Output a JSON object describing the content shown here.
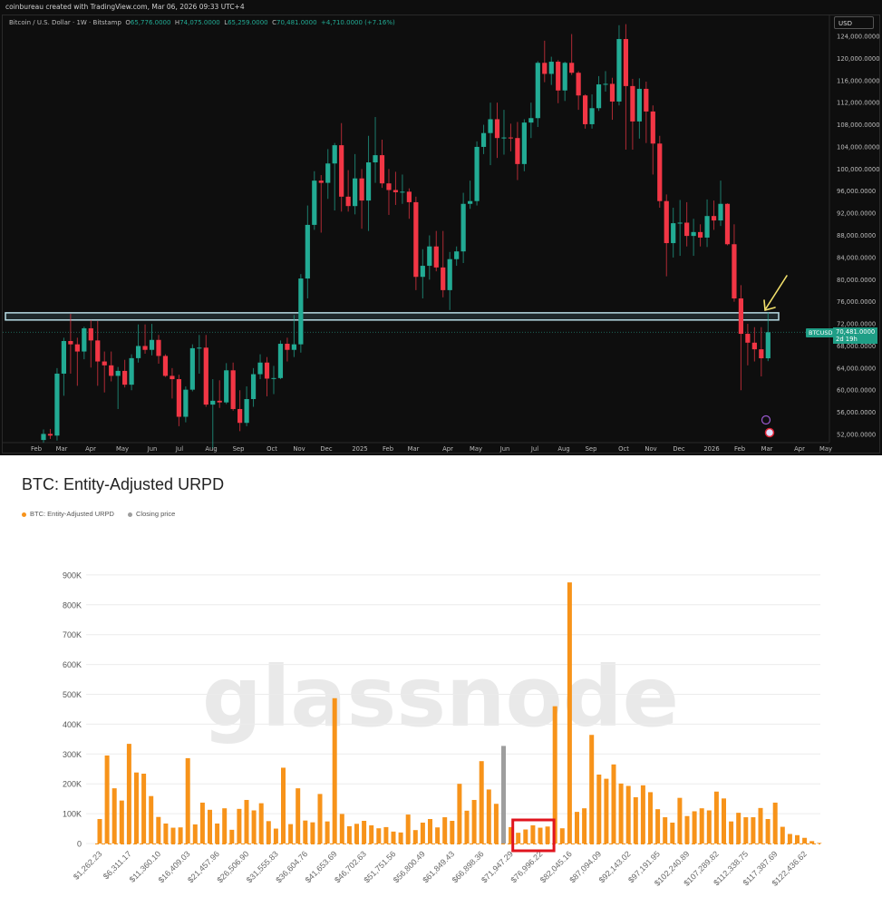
{
  "header": {
    "credit": "coinbureau created with TradingView.com, Mar 06, 2026 09:33 UTC+4",
    "symbol_desc": "Bitcoin / U.S. Dollar · 1W · Bitstamp",
    "o_label": "O",
    "o_value": "65,776.0000",
    "h_label": "H",
    "h_value": "74,075.0000",
    "l_label": "L",
    "l_value": "65,259.0000",
    "c_label": "C",
    "c_value": "70,481.0000",
    "change": "+4,710.0000 (+7.16%)",
    "currency": "USD"
  },
  "price_tag": {
    "symbol": "BTCUSD",
    "price": "70,481.0000",
    "countdown": "2d 19h"
  },
  "colors": {
    "up": "#22ab94",
    "down": "#f23645",
    "zone": "#b9dde6",
    "arrow": "#f2e06b",
    "urpd": "#f7931a",
    "closing": "#9e9e9e",
    "highlight_box": "#e0141e"
  },
  "chart_data": [
    {
      "type": "candlestick",
      "title": "Bitcoin / U.S. Dollar · 1W · Bitstamp",
      "interval": "1W",
      "ylim": [
        50000,
        126000
      ],
      "y_ticks": [
        52000,
        56000,
        60000,
        64000,
        68000,
        72000,
        76000,
        80000,
        84000,
        88000,
        92000,
        96000,
        100000,
        104000,
        108000,
        112000,
        116000,
        120000,
        124000
      ],
      "y_tick_labels": [
        "52,000.0000",
        "56,000.0000",
        "60,000.0000",
        "64,000.0000",
        "68,000.0000",
        "72,000.0000",
        "76,000.0000",
        "80,000.0000",
        "84,000.0000",
        "88,000.0000",
        "92,000.0000",
        "96,000.0000",
        "100,000.0000",
        "104,000.0000",
        "108,000.0000",
        "112,000.0000",
        "116,000.0000",
        "120,000.0000",
        "124,000.0000"
      ],
      "x_tick_labels": [
        "Feb",
        "Mar",
        "Apr",
        "May",
        "Jun",
        "Jul",
        "Aug",
        "Sep",
        "Oct",
        "Nov",
        "Dec",
        "2025",
        "Feb",
        "Mar",
        "Apr",
        "May",
        "Jun",
        "Jul",
        "Aug",
        "Sep",
        "Oct",
        "Nov",
        "Dec",
        "2026",
        "Feb",
        "Mar",
        "Apr",
        "May"
      ],
      "ohlc_fields": [
        "open",
        "high",
        "low",
        "close"
      ],
      "candles": [
        [
          51000,
          52900,
          50500,
          52100
        ],
        [
          52100,
          53000,
          51200,
          51800
        ],
        [
          51800,
          64000,
          50900,
          63000
        ],
        [
          63000,
          69500,
          59000,
          68900
        ],
        [
          68900,
          73800,
          63000,
          68300
        ],
        [
          68300,
          69500,
          60800,
          67000
        ],
        [
          67000,
          71500,
          65600,
          71200
        ],
        [
          71200,
          72700,
          64100,
          69000
        ],
        [
          69000,
          72500,
          60800,
          65200
        ],
        [
          65200,
          67000,
          59600,
          64500
        ],
        [
          64500,
          67000,
          61600,
          62600
        ],
        [
          62600,
          64200,
          56600,
          63500
        ],
        [
          63500,
          65500,
          60500,
          61000
        ],
        [
          61000,
          66500,
          60000,
          65800
        ],
        [
          65800,
          71900,
          65000,
          68000
        ],
        [
          68000,
          71900,
          66600,
          67300
        ],
        [
          67300,
          72000,
          66300,
          69100
        ],
        [
          69100,
          70000,
          64800,
          66200
        ],
        [
          66200,
          66500,
          62400,
          62600
        ],
        [
          62600,
          64000,
          58500,
          62000
        ],
        [
          62000,
          62800,
          53500,
          55200
        ],
        [
          55200,
          60700,
          54200,
          60100
        ],
        [
          60100,
          68300,
          59800,
          67600
        ],
        [
          67600,
          70000,
          63000,
          67700
        ],
        [
          67700,
          70000,
          57000,
          57400
        ],
        [
          57400,
          62000,
          49500,
          58100
        ],
        [
          58100,
          61800,
          56800,
          57800
        ],
        [
          57800,
          64900,
          57500,
          63600
        ],
        [
          63600,
          65000,
          56300,
          56600
        ],
        [
          56600,
          60000,
          52600,
          54100
        ],
        [
          54100,
          60700,
          53500,
          58400
        ],
        [
          58400,
          64000,
          57000,
          62900
        ],
        [
          62900,
          66500,
          62000,
          65000
        ],
        [
          65000,
          66000,
          58900,
          62100
        ],
        [
          62100,
          64400,
          59300,
          62200
        ],
        [
          62200,
          69000,
          62000,
          68400
        ],
        [
          68400,
          69500,
          65200,
          67300
        ],
        [
          67300,
          73600,
          66000,
          68300
        ],
        [
          68300,
          81000,
          66800,
          80200
        ],
        [
          80200,
          93400,
          76600,
          89900
        ],
        [
          89900,
          99600,
          89000,
          97900
        ],
        [
          97900,
          98900,
          88500,
          97500
        ],
        [
          97500,
          103600,
          94600,
          101000
        ],
        [
          101000,
          104700,
          92500,
          104300
        ],
        [
          104300,
          108300,
          92300,
          95000
        ],
        [
          95000,
          99800,
          92300,
          93300
        ],
        [
          93300,
          102700,
          91800,
          98300
        ],
        [
          98300,
          100000,
          89200,
          94300
        ],
        [
          94300,
          106000,
          88800,
          101200
        ],
        [
          101200,
          109400,
          97500,
          102500
        ],
        [
          102500,
          105300,
          96600,
          97400
        ],
        [
          97400,
          100000,
          91700,
          96200
        ],
        [
          96200,
          99500,
          93500,
          95800
        ],
        [
          95800,
          99000,
          93700,
          95900
        ],
        [
          95900,
          96500,
          91000,
          94000
        ],
        [
          94000,
          95000,
          78100,
          80500
        ],
        [
          80500,
          85500,
          76600,
          82500
        ],
        [
          82500,
          88000,
          80000,
          86000
        ],
        [
          86000,
          88800,
          81500,
          82200
        ],
        [
          82200,
          88800,
          76800,
          78100
        ],
        [
          78100,
          85000,
          74500,
          83700
        ],
        [
          83700,
          86000,
          82500,
          85100
        ],
        [
          85100,
          95700,
          83000,
          93700
        ],
        [
          93700,
          97900,
          92800,
          94200
        ],
        [
          94200,
          105000,
          93400,
          104000
        ],
        [
          104000,
          108000,
          102700,
          106500
        ],
        [
          106500,
          112000,
          100700,
          109000
        ],
        [
          109000,
          112000,
          102000,
          105600
        ],
        [
          105600,
          110700,
          102600,
          105700
        ],
        [
          105700,
          108200,
          103200,
          105600
        ],
        [
          105600,
          108500,
          98000,
          100900
        ],
        [
          100900,
          109000,
          99600,
          108400
        ],
        [
          108400,
          112000,
          105600,
          109200
        ],
        [
          109200,
          119500,
          107600,
          119200
        ],
        [
          119200,
          123200,
          115700,
          117200
        ],
        [
          117200,
          120300,
          115200,
          119400
        ],
        [
          119400,
          119700,
          111900,
          114200
        ],
        [
          114200,
          119400,
          112300,
          119200
        ],
        [
          119200,
          124400,
          117000,
          117400
        ],
        [
          117400,
          117700,
          110700,
          113300
        ],
        [
          113300,
          113500,
          107300,
          108100
        ],
        [
          108100,
          113500,
          107300,
          111000
        ],
        [
          111000,
          116800,
          110500,
          115300
        ],
        [
          115300,
          117700,
          114000,
          115400
        ],
        [
          115400,
          116500,
          108900,
          112200
        ],
        [
          112200,
          126000,
          111500,
          123500
        ],
        [
          123500,
          126200,
          103500,
          115000
        ],
        [
          115000,
          116300,
          103500,
          108600
        ],
        [
          108600,
          116400,
          105500,
          114500
        ],
        [
          114500,
          115800,
          104700,
          110400
        ],
        [
          110400,
          111500,
          99000,
          104600
        ],
        [
          104600,
          106000,
          93000,
          94200
        ],
        [
          94200,
          95400,
          80600,
          86600
        ],
        [
          86600,
          93000,
          84000,
          90200
        ],
        [
          90200,
          94400,
          84300,
          90300
        ],
        [
          90300,
          94000,
          86000,
          87900
        ],
        [
          87900,
          91000,
          84300,
          88600
        ],
        [
          88600,
          90000,
          86000,
          87600
        ],
        [
          87600,
          94500,
          85900,
          91500
        ],
        [
          91500,
          94300,
          89000,
          90700
        ],
        [
          90700,
          97900,
          89700,
          93700
        ],
        [
          93700,
          93800,
          86200,
          86400
        ],
        [
          86400,
          90000,
          76000,
          76600
        ],
        [
          76600,
          79000,
          60000,
          70200
        ],
        [
          70200,
          72000,
          64500,
          68600
        ],
        [
          68600,
          71400,
          65200,
          67400
        ],
        [
          67400,
          71400,
          62500,
          65776
        ],
        [
          65776,
          74075,
          65259,
          70481
        ]
      ],
      "last_price": 70481,
      "annotations": {
        "resistance_zone": [
          72700,
          74000
        ],
        "arrow": "pointing to last candle high at zone"
      }
    },
    {
      "type": "bar",
      "title": "BTC: Entity-Adjusted URPD",
      "legend": [
        {
          "name": "BTC: Entity-Adjusted URPD",
          "color": "#f7931a"
        },
        {
          "name": "Closing price",
          "color": "#9e9e9e"
        }
      ],
      "legend_placement": "top-left",
      "watermark": "glassnode",
      "ylim": [
        0,
        900000
      ],
      "y_ticks": [
        0,
        100000,
        200000,
        300000,
        400000,
        500000,
        600000,
        700000,
        800000,
        900000
      ],
      "y_tick_labels": [
        "0",
        "100K",
        "200K",
        "300K",
        "400K",
        "500K",
        "600K",
        "700K",
        "800K",
        "900K"
      ],
      "x_tick_labels": [
        "$1,262.23",
        "$6,311.17",
        "$11,360.10",
        "$16,409.03",
        "$21,457.96",
        "$26,506.90",
        "$31,555.83",
        "$36,604.76",
        "$41,653.69",
        "$46,702.63",
        "$51,751.56",
        "$56,800.49",
        "$61,849.43",
        "$66,898.36",
        "$71,947.29",
        "$76,996.22",
        "$82,045.16",
        "$87,094.09",
        "$92,143.02",
        "$97,191.95",
        "$102,240.89",
        "$107,289.82",
        "$112,338.75",
        "$117,387.69",
        "$122,436.62"
      ],
      "x_tick_every": 4,
      "grid": true,
      "closing_price_bar_index": 55,
      "highlighted_bar_range": [
        57,
        61
      ],
      "values": [
        82000,
        295000,
        185000,
        144000,
        334000,
        238000,
        234000,
        159000,
        89000,
        67000,
        53000,
        54000,
        286000,
        64000,
        137000,
        113000,
        67000,
        118000,
        46000,
        116000,
        146000,
        111000,
        135000,
        75000,
        50000,
        254000,
        65000,
        185000,
        77000,
        71000,
        166000,
        74000,
        487000,
        99000,
        58000,
        66000,
        76000,
        61000,
        51000,
        55000,
        40000,
        37000,
        97000,
        45000,
        70000,
        82000,
        54000,
        88000,
        76000,
        200000,
        110000,
        146000,
        276000,
        181000,
        133000,
        327000,
        55000,
        36000,
        47000,
        61000,
        53000,
        57000,
        460000,
        51000,
        875000,
        106000,
        118000,
        364000,
        231000,
        217000,
        265000,
        201000,
        193000,
        155000,
        195000,
        172000,
        115000,
        88000,
        70000,
        153000,
        92000,
        108000,
        118000,
        111000,
        174000,
        151000,
        74000,
        103000,
        88000,
        88000,
        119000,
        82000,
        137000,
        56000,
        32000,
        28000,
        19000,
        8000,
        2000
      ]
    }
  ]
}
